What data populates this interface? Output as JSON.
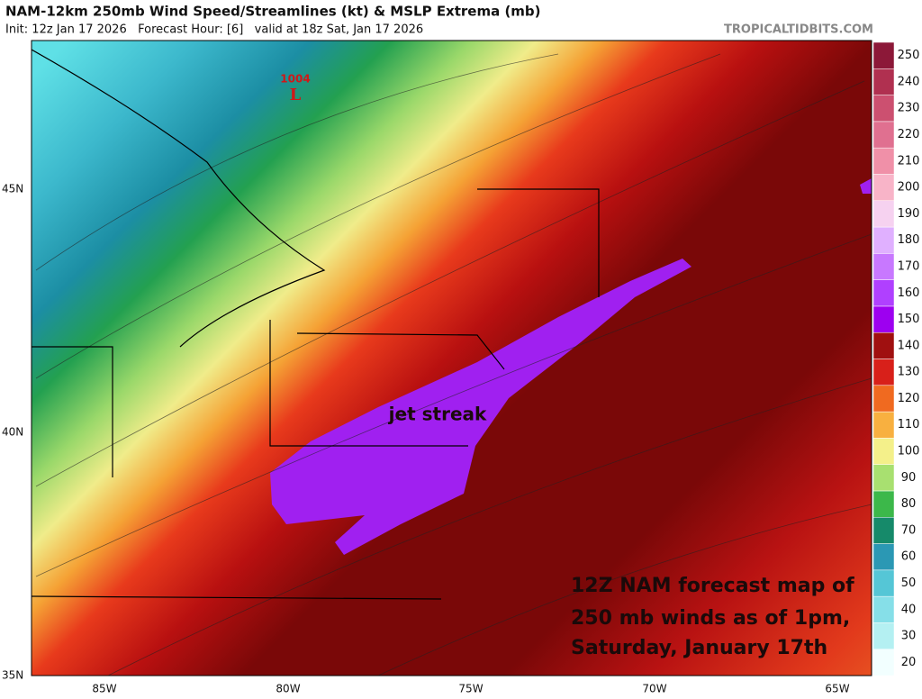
{
  "header": {
    "title": "NAM-12km 250mb Wind Speed/Streamlines (kt) & MSLP Extrema (mb)",
    "subtitle": "Init: 12z Jan 17 2026   Forecast Hour: [6]   valid at 18z Sat, Jan 17 2026",
    "credit": "TROPICALTIDBITS.COM"
  },
  "map": {
    "pressure_label": "1004",
    "low_marker": "L",
    "feature_label": "jet streak",
    "annotation": [
      "12Z NAM forecast map of",
      "250 mb winds as of 1pm,",
      "Saturday, January 17th"
    ],
    "lat_labels": [
      "45N",
      "40N",
      "35N"
    ],
    "lon_labels": [
      "85W",
      "80W",
      "75W",
      "70W",
      "65W"
    ]
  },
  "colorbar": {
    "labels": [
      "20",
      "30",
      "40",
      "50",
      "60",
      "70",
      "80",
      "90",
      "100",
      "110",
      "120",
      "130",
      "140",
      "150",
      "160",
      "170",
      "180",
      "190",
      "200",
      "210",
      "220",
      "230",
      "240",
      "250"
    ],
    "colors": [
      "#f2ffff",
      "#b4f0f2",
      "#86dfe8",
      "#55c6d6",
      "#2b98b4",
      "#168a6a",
      "#3cb84a",
      "#a8e070",
      "#f4f08a",
      "#f8b040",
      "#f06a20",
      "#d8201a",
      "#a01010",
      "#9d00f0",
      "#b040ff",
      "#c878ff",
      "#e0b0ff",
      "#f6d2f0",
      "#f8b4c8",
      "#f090a8",
      "#e07090",
      "#cc5070",
      "#b03050",
      "#8c1838"
    ]
  }
}
